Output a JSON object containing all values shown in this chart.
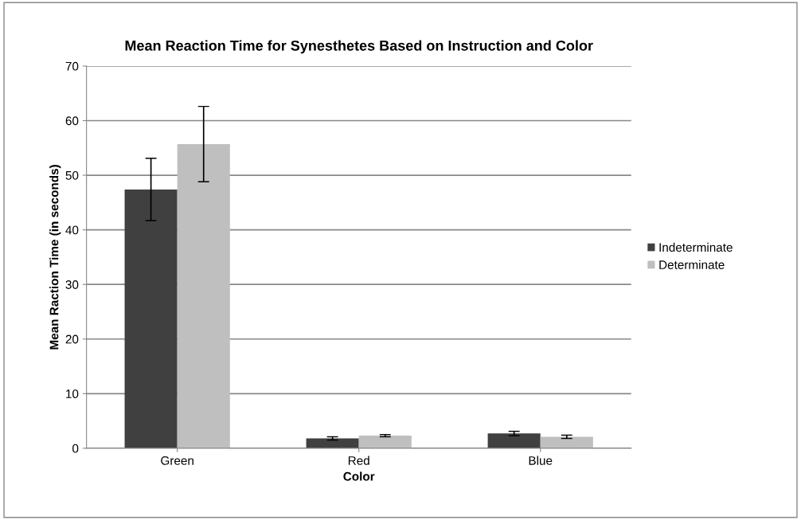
{
  "chart_data": {
    "type": "bar",
    "title": "Mean Reaction Time for Synesthetes Based on Instruction and Color",
    "xlabel": "Color",
    "ylabel": "Mean Raction Time (in seconds)",
    "categories": [
      "Green",
      "Red",
      "Blue"
    ],
    "series": [
      {
        "name": "Indeterminate",
        "color": "#404040",
        "values": [
          47.4,
          1.8,
          2.7
        ],
        "errors": [
          5.7,
          0.3,
          0.4
        ]
      },
      {
        "name": "Determinate",
        "color": "#bfbfbf",
        "values": [
          55.7,
          2.3,
          2.1
        ],
        "errors": [
          6.9,
          0.2,
          0.3
        ]
      }
    ],
    "ylim": [
      0,
      70
    ],
    "yticks": [
      0,
      10,
      20,
      30,
      40,
      50,
      60,
      70
    ],
    "grid": "y",
    "legend": "right"
  }
}
